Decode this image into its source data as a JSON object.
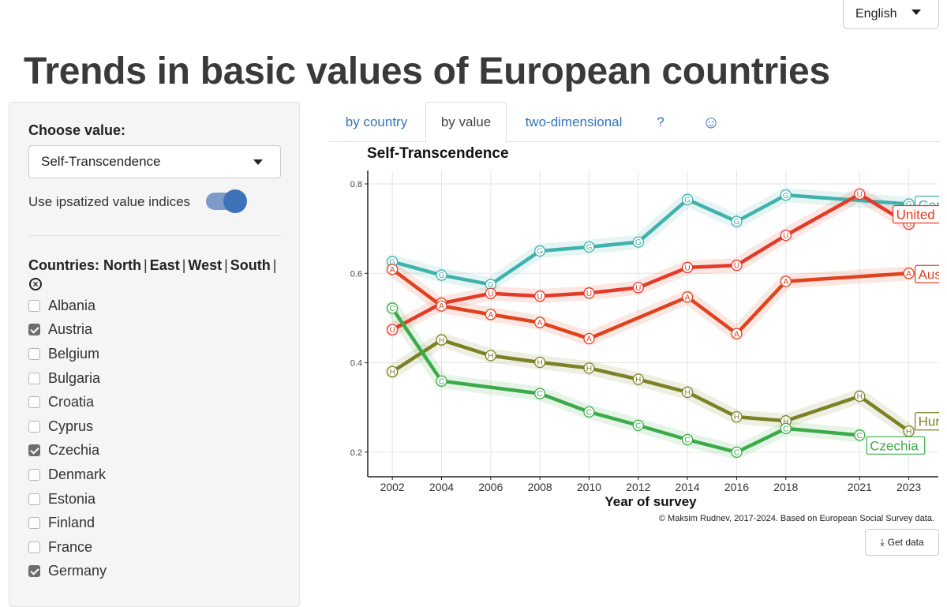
{
  "language": {
    "selected": "English"
  },
  "page_title": "Trends in basic values of European countries",
  "sidebar": {
    "choose_label": "Choose value:",
    "value_selected": "Self-Transcendence",
    "ipsatize_label": "Use ipsatized value indices",
    "ipsatize_on": true,
    "countries_label": "Countries:",
    "groups": [
      "North",
      "East",
      "West",
      "South"
    ],
    "countries": [
      {
        "name": "Albania",
        "checked": false
      },
      {
        "name": "Austria",
        "checked": true
      },
      {
        "name": "Belgium",
        "checked": false
      },
      {
        "name": "Bulgaria",
        "checked": false
      },
      {
        "name": "Croatia",
        "checked": false
      },
      {
        "name": "Cyprus",
        "checked": false
      },
      {
        "name": "Czechia",
        "checked": true
      },
      {
        "name": "Denmark",
        "checked": false
      },
      {
        "name": "Estonia",
        "checked": false
      },
      {
        "name": "Finland",
        "checked": false
      },
      {
        "name": "France",
        "checked": false
      },
      {
        "name": "Germany",
        "checked": true
      }
    ]
  },
  "tabs": [
    {
      "label": "by country",
      "active": false
    },
    {
      "label": "by value",
      "active": true
    },
    {
      "label": "two-dimensional",
      "active": false
    },
    {
      "label": "?",
      "active": false
    },
    {
      "label": "☺",
      "active": false
    }
  ],
  "get_data_label": "Get data",
  "chart_data": {
    "type": "line",
    "title": "Self-Transcendence",
    "xlabel": "Year of survey",
    "ylabel": "",
    "caption": "© Maksim Rudnev, 2017-2024. Based on European Social Survey data.",
    "xlim": [
      2001,
      2024.2
    ],
    "ylim": [
      0.145,
      0.83
    ],
    "x_ticks": [
      2002,
      2004,
      2006,
      2008,
      2010,
      2012,
      2014,
      2016,
      2018,
      2021,
      2023
    ],
    "y_ticks": [
      0.2,
      0.4,
      0.6,
      0.8
    ],
    "y_tick_labels": [
      "0.2",
      "0.4",
      "0.6",
      "0.8"
    ],
    "grid": true,
    "series": [
      {
        "name": "Germany",
        "marker": "G",
        "color": "#3fb2ad",
        "x": [
          2002,
          2004,
          2006,
          2008,
          2010,
          2012,
          2014,
          2016,
          2018,
          2023
        ],
        "y": [
          0.626,
          0.596,
          0.575,
          0.65,
          0.659,
          0.67,
          0.765,
          0.716,
          0.775,
          0.755
        ]
      },
      {
        "name": "United Kingdom",
        "marker": "U",
        "color": "#e43a28",
        "x": [
          2002,
          2004,
          2006,
          2008,
          2010,
          2012,
          2014,
          2016,
          2018,
          2021,
          2023
        ],
        "y": [
          0.474,
          0.533,
          0.555,
          0.549,
          0.556,
          0.568,
          0.613,
          0.618,
          0.685,
          0.777,
          0.71
        ]
      },
      {
        "name": "Austria",
        "marker": "A",
        "color": "#e0421e",
        "x": [
          2002,
          2004,
          2006,
          2008,
          2010,
          2014,
          2016,
          2018,
          2023
        ],
        "y": [
          0.609,
          0.527,
          0.508,
          0.49,
          0.454,
          0.547,
          0.465,
          0.582,
          0.6
        ]
      },
      {
        "name": "Hungary",
        "marker": "H",
        "color": "#7c8125",
        "x": [
          2002,
          2004,
          2006,
          2008,
          2010,
          2012,
          2014,
          2016,
          2018,
          2021,
          2023
        ],
        "y": [
          0.38,
          0.451,
          0.416,
          0.401,
          0.388,
          0.363,
          0.334,
          0.279,
          0.27,
          0.325,
          0.247
        ]
      },
      {
        "name": "Czechia",
        "marker": "C",
        "color": "#3bab4a",
        "x": [
          2002,
          2004,
          2008,
          2010,
          2012,
          2014,
          2016,
          2018,
          2021
        ],
        "y": [
          0.522,
          0.359,
          0.331,
          0.29,
          0.26,
          0.228,
          0.2,
          0.253,
          0.238
        ]
      }
    ]
  }
}
